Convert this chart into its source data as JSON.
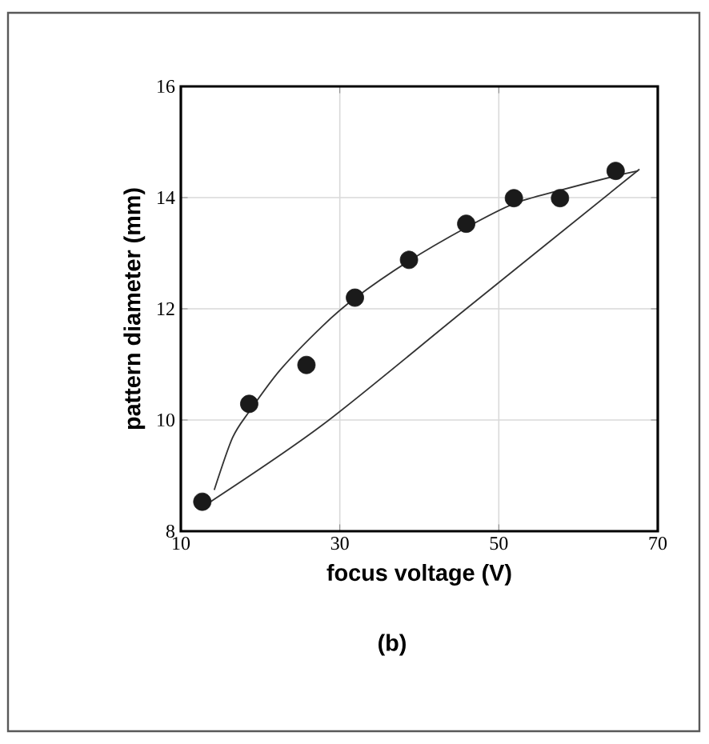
{
  "chart_data": {
    "type": "scatter",
    "xlabel": "focus voltage (V)",
    "ylabel": "pattern diameter (mm)",
    "xlim": [
      10,
      70
    ],
    "ylim": [
      8,
      16
    ],
    "xticks": [
      10,
      30,
      50,
      70
    ],
    "yticks": [
      8,
      10,
      12,
      14,
      16
    ],
    "grid": true,
    "annotations": [
      "(b)"
    ],
    "series": [
      {
        "marker": "circle",
        "color": "#1a1a1a",
        "x": [
          12.7,
          18.6,
          25.8,
          31.9,
          38.7,
          45.9,
          51.9,
          57.7,
          64.7
        ],
        "values": [
          8.53,
          10.29,
          10.99,
          12.2,
          12.88,
          13.53,
          13.99,
          13.99,
          14.48
        ]
      },
      {
        "type": "line",
        "marker": "none",
        "color": "#333333",
        "x": [
          14.2,
          16.5,
          18.6,
          22.5,
          27.9,
          31.9,
          38.7,
          45.9,
          51.9,
          57.7,
          64.7,
          67.5
        ],
        "values": [
          8.74,
          9.68,
          10.15,
          10.9,
          11.7,
          12.19,
          12.86,
          13.46,
          13.89,
          14.13,
          14.39,
          14.48
        ]
      },
      {
        "type": "line",
        "marker": "none",
        "color": "#333333",
        "x": [
          13.2,
          27.9,
          45.9,
          67.7
        ],
        "values": [
          8.48,
          9.92,
          12.0,
          14.51
        ]
      }
    ]
  }
}
